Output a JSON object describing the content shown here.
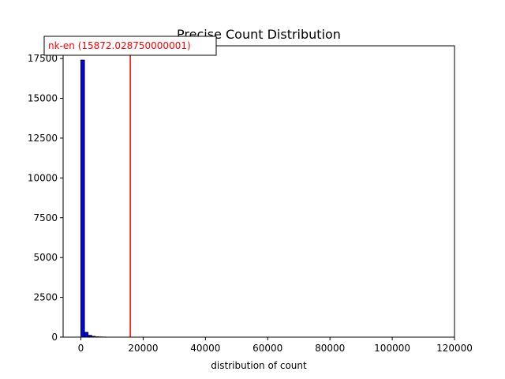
{
  "chart_data": {
    "type": "bar",
    "title": "Precise Count Distribution",
    "xlabel": "distribution of count",
    "ylabel": "",
    "xlim": [
      -5700,
      120000
    ],
    "ylim": [
      0,
      18300
    ],
    "x_ticks": [
      0,
      20000,
      40000,
      60000,
      80000,
      100000,
      120000
    ],
    "x_tick_labels": [
      "0",
      "20000",
      "40000",
      "60000",
      "80000",
      "100000",
      "120000"
    ],
    "y_ticks": [
      0,
      2500,
      5000,
      7500,
      10000,
      12500,
      15000,
      17500
    ],
    "y_tick_labels": [
      "0",
      "2500",
      "5000",
      "7500",
      "10000",
      "12500",
      "15000",
      "17500"
    ],
    "bin_width": 1150,
    "bins": [
      {
        "x0": 0,
        "x1": 1150,
        "count": 17400
      },
      {
        "x0": 1150,
        "x1": 2300,
        "count": 300
      },
      {
        "x0": 2300,
        "x1": 3450,
        "count": 110
      },
      {
        "x0": 3450,
        "x1": 4600,
        "count": 50
      },
      {
        "x0": 4600,
        "x1": 5750,
        "count": 20
      },
      {
        "x0": 5750,
        "x1": 6900,
        "count": 10
      },
      {
        "x0": 6900,
        "x1": 8050,
        "count": 5
      }
    ],
    "bar_color": "#0000ff",
    "bar_edge_color": "#000000",
    "reference_line": {
      "x": 15872.028750000001,
      "color": "#ff0000",
      "label": "nk-en (15872.028750000001)"
    },
    "grid": false,
    "legend": "none"
  }
}
